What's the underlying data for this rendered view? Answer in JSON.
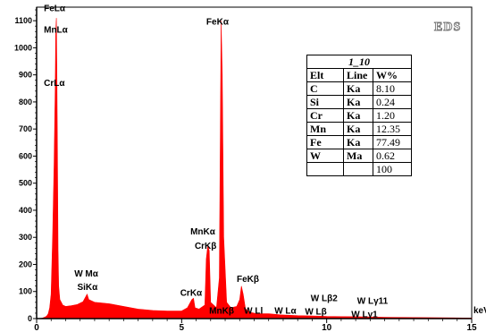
{
  "chart_data": {
    "type": "area",
    "tag": "EDS",
    "xlabel": "keV",
    "ylabel": "",
    "xlim": [
      0,
      15
    ],
    "ylim": [
      0,
      1150
    ],
    "x_ticks": [
      "0",
      "5",
      "10",
      "15"
    ],
    "y_ticks": [
      "0",
      "100",
      "200",
      "300",
      "400",
      "500",
      "600",
      "700",
      "800",
      "900",
      "1000",
      "1100"
    ],
    "series": [
      {
        "color": "#ff0000",
        "x": [
          0.0,
          0.1,
          0.2,
          0.3,
          0.35,
          0.4,
          0.45,
          0.5,
          0.55,
          0.6,
          0.64,
          0.66,
          0.68,
          0.7,
          0.72,
          0.74,
          0.76,
          0.8,
          0.85,
          0.9,
          1.0,
          1.2,
          1.4,
          1.6,
          1.74,
          1.8,
          2.0,
          2.2,
          2.5,
          3.0,
          3.5,
          4.0,
          4.5,
          5.0,
          5.2,
          5.35,
          5.41,
          5.46,
          5.6,
          5.8,
          5.85,
          5.9,
          5.95,
          6.0,
          6.2,
          6.3,
          6.36,
          6.4,
          6.45,
          6.55,
          6.7,
          6.9,
          7.0,
          7.06,
          7.12,
          7.2,
          7.4,
          7.6,
          8.0,
          8.4,
          8.8,
          9.0,
          9.5,
          10.0,
          11.0,
          12.0,
          13.0,
          14.0,
          15.0
        ],
        "y": [
          0,
          0,
          2,
          6,
          10,
          18,
          40,
          90,
          300,
          560,
          850,
          1060,
          1110,
          900,
          560,
          250,
          120,
          70,
          60,
          50,
          45,
          48,
          52,
          62,
          90,
          70,
          60,
          58,
          55,
          45,
          35,
          30,
          28,
          28,
          40,
          70,
          75,
          40,
          35,
          50,
          220,
          270,
          250,
          60,
          40,
          150,
          1100,
          900,
          300,
          60,
          40,
          45,
          70,
          120,
          90,
          35,
          22,
          18,
          18,
          14,
          12,
          11,
          10,
          8,
          7,
          5,
          4,
          3,
          2
        ]
      }
    ],
    "annotations": [
      {
        "text": "FeLα",
        "x": 0.25,
        "y": 1135
      },
      {
        "text": "MnLα",
        "x": 0.25,
        "y": 1055
      },
      {
        "text": "CrLα",
        "x": 0.25,
        "y": 860
      },
      {
        "text": "FeKα",
        "x": 5.85,
        "y": 1085
      },
      {
        "text": "W Mα",
        "x": 1.3,
        "y": 155
      },
      {
        "text": "SiKα",
        "x": 1.4,
        "y": 105
      },
      {
        "text": "MnKα",
        "x": 5.3,
        "y": 310
      },
      {
        "text": "CrKβ",
        "x": 5.45,
        "y": 257
      },
      {
        "text": "CrKα",
        "x": 4.95,
        "y": 85
      },
      {
        "text": "FeKβ",
        "x": 6.9,
        "y": 135
      },
      {
        "text": "MnKβ",
        "x": 5.95,
        "y": 18
      },
      {
        "text": "W Ll",
        "x": 7.15,
        "y": 18
      },
      {
        "text": "W Lα",
        "x": 8.2,
        "y": 18
      },
      {
        "text": "W Lβ2",
        "x": 9.45,
        "y": 65
      },
      {
        "text": "W Lβ",
        "x": 9.25,
        "y": 15
      },
      {
        "text": "W Lγ11",
        "x": 11.05,
        "y": 55
      },
      {
        "text": "W Lγ1",
        "x": 10.85,
        "y": 5
      }
    ]
  },
  "table": {
    "title": "1_10",
    "headers": [
      "Elt",
      "Line",
      "W%"
    ],
    "rows": [
      [
        "C",
        "Ka",
        "8.10"
      ],
      [
        "Si",
        "Ka",
        "0.24"
      ],
      [
        "Cr",
        "Ka",
        "1.20"
      ],
      [
        "Mn",
        "Ka",
        "12.35"
      ],
      [
        "Fe",
        "Ka",
        "77.49"
      ],
      [
        "W",
        "Ma",
        "0.62"
      ],
      [
        "",
        "",
        "100"
      ]
    ]
  }
}
